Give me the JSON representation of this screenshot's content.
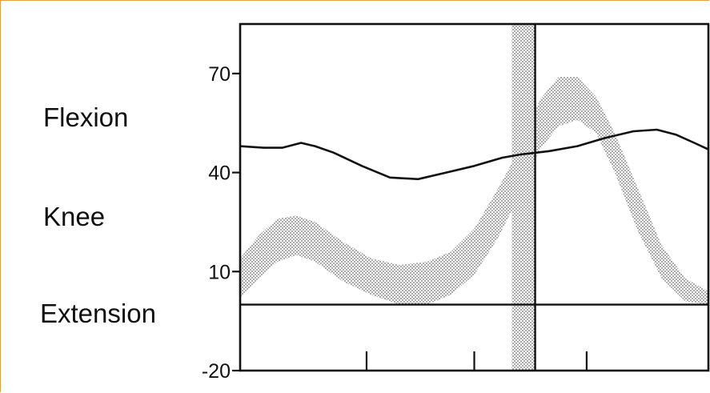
{
  "labels": {
    "flexion": "Flexion",
    "knee": "Knee",
    "extension": "Extension"
  },
  "chart_data": {
    "type": "line",
    "title": "",
    "xlabel": "",
    "ylabel": "",
    "ylim": [
      -20,
      85
    ],
    "xlim": [
      0,
      100
    ],
    "y_ticks": [
      -20,
      10,
      40,
      70
    ],
    "zero_line": 0,
    "x_tick_positions": [
      27,
      50,
      74
    ],
    "vertical_divider": 63,
    "shaded_band": {
      "x_start": 58,
      "x_end": 63
    },
    "series": [
      {
        "values": [
          [
            0,
            48
          ],
          [
            5,
            47.5
          ],
          [
            9,
            47.5
          ],
          [
            13,
            49
          ],
          [
            16,
            48
          ],
          [
            20,
            46
          ],
          [
            26,
            42
          ],
          [
            32,
            38.5
          ],
          [
            38,
            38
          ],
          [
            44,
            40
          ],
          [
            50,
            42
          ],
          [
            56,
            44.5
          ],
          [
            60,
            45.5
          ],
          [
            66,
            46.5
          ],
          [
            72,
            48
          ],
          [
            78,
            50.5
          ],
          [
            84,
            52.5
          ],
          [
            89,
            53
          ],
          [
            93,
            51.5
          ],
          [
            97,
            49
          ],
          [
            100,
            47
          ]
        ]
      }
    ],
    "shaded_area_upper": [
      [
        0,
        14
      ],
      [
        4,
        21
      ],
      [
        8,
        26
      ],
      [
        12,
        27
      ],
      [
        16,
        25
      ],
      [
        22,
        19
      ],
      [
        28,
        14
      ],
      [
        34,
        12
      ],
      [
        40,
        13
      ],
      [
        45,
        16
      ],
      [
        50,
        23
      ],
      [
        55,
        35
      ],
      [
        60,
        48
      ],
      [
        64,
        62
      ],
      [
        68,
        69
      ],
      [
        72,
        69
      ],
      [
        76,
        63
      ],
      [
        80,
        52
      ],
      [
        85,
        35
      ],
      [
        90,
        18
      ],
      [
        95,
        8
      ],
      [
        100,
        4
      ]
    ],
    "shaded_area_lower": [
      [
        0,
        2
      ],
      [
        4,
        8
      ],
      [
        8,
        13
      ],
      [
        12,
        15
      ],
      [
        16,
        13
      ],
      [
        22,
        7
      ],
      [
        28,
        3
      ],
      [
        34,
        0
      ],
      [
        40,
        0
      ],
      [
        45,
        3
      ],
      [
        50,
        9
      ],
      [
        55,
        20
      ],
      [
        60,
        34
      ],
      [
        64,
        47
      ],
      [
        68,
        54
      ],
      [
        72,
        56
      ],
      [
        76,
        52
      ],
      [
        80,
        40
      ],
      [
        85,
        22
      ],
      [
        90,
        8
      ],
      [
        95,
        1
      ],
      [
        100,
        0
      ]
    ]
  }
}
